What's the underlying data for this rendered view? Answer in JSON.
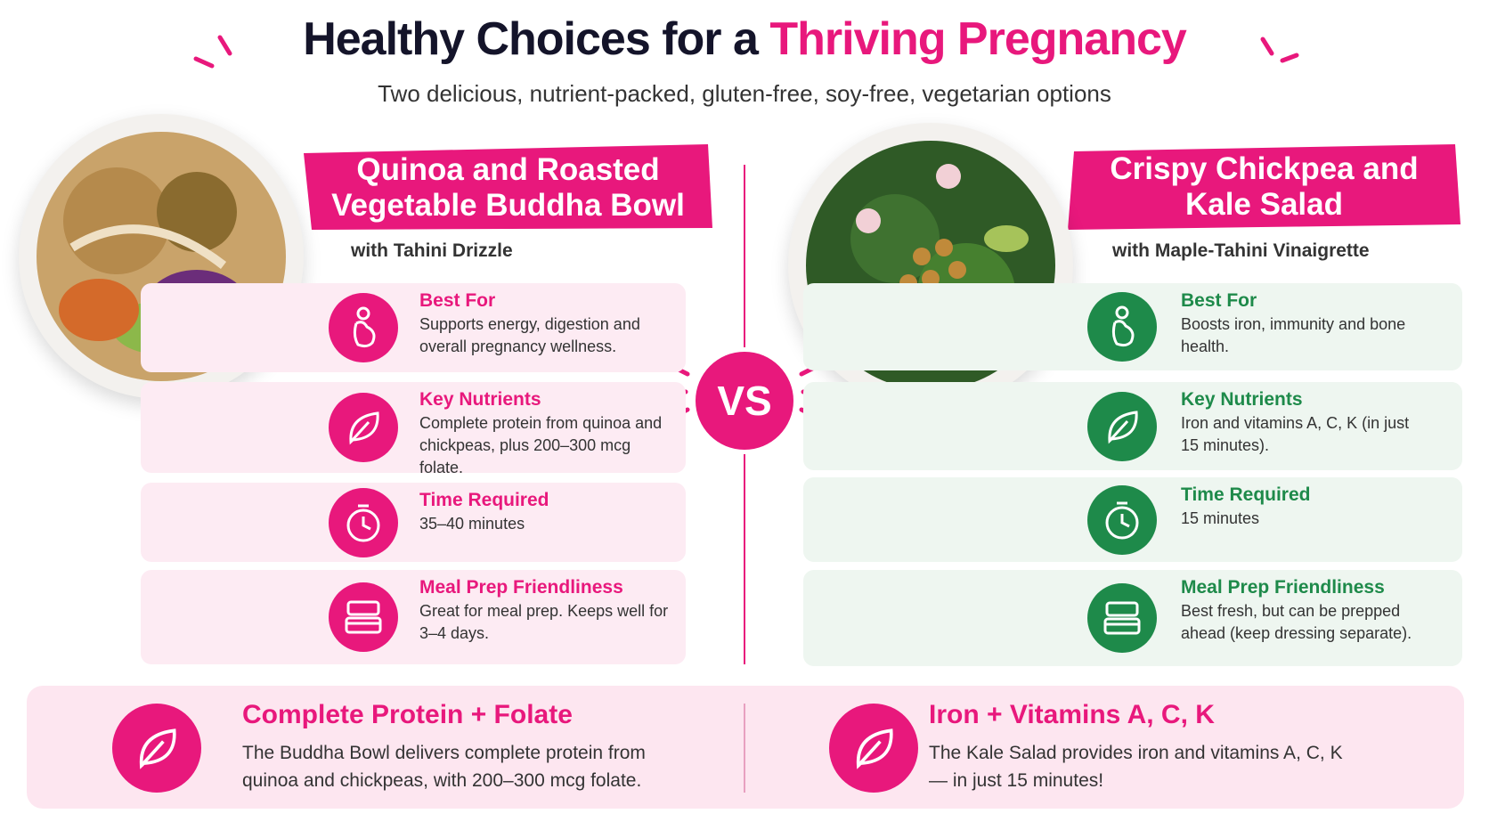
{
  "header": {
    "title_start": "Healthy Choices for a",
    "title_highlight": "Thriving Pregnancy",
    "subtitle": "Two delicious, nutrient-packed, gluten-free, soy-free, vegetarian options"
  },
  "vs": "VS",
  "left": {
    "title": "Quinoa and Roasted Vegetable Buddha Bowl",
    "subtitle": "with Tahini Drizzle",
    "items": [
      {
        "label": "Best For",
        "text": "Supports energy, digestion and overall pregnancy wellness."
      },
      {
        "label": "Key Nutrients",
        "text": "Complete protein from quinoa and chickpeas, plus 200–300 mcg folate."
      },
      {
        "label": "Time Required",
        "text": "35–40 minutes"
      },
      {
        "label": "Meal Prep Friendliness",
        "text": "Great for meal prep. Keeps well for 3–4 days."
      }
    ]
  },
  "right": {
    "title": "Crispy Chickpea and Kale Salad",
    "subtitle": "with Maple-Tahini Vinaigrette",
    "items": [
      {
        "label": "Best For",
        "text": "Boosts iron, immunity and bone health."
      },
      {
        "label": "Key Nutrients",
        "text": "Iron and vitamins A, C, K (in just 15 minutes)."
      },
      {
        "label": "Time Required",
        "text": "15 minutes"
      },
      {
        "label": "Meal Prep Friendliness",
        "text": "Best fresh, but can be prepped ahead (keep dressing separate)."
      }
    ]
  },
  "summary": {
    "left": {
      "heading": "Complete Protein + Folate",
      "text": "The Buddha Bowl delivers complete protein from quinoa and chickpeas, with 200–300 mcg folate."
    },
    "right": {
      "heading": "Iron + Vitamins A, C, K",
      "text": "The Kale Salad provides iron and vitamins A, C, K — in just 15 minutes!"
    }
  }
}
